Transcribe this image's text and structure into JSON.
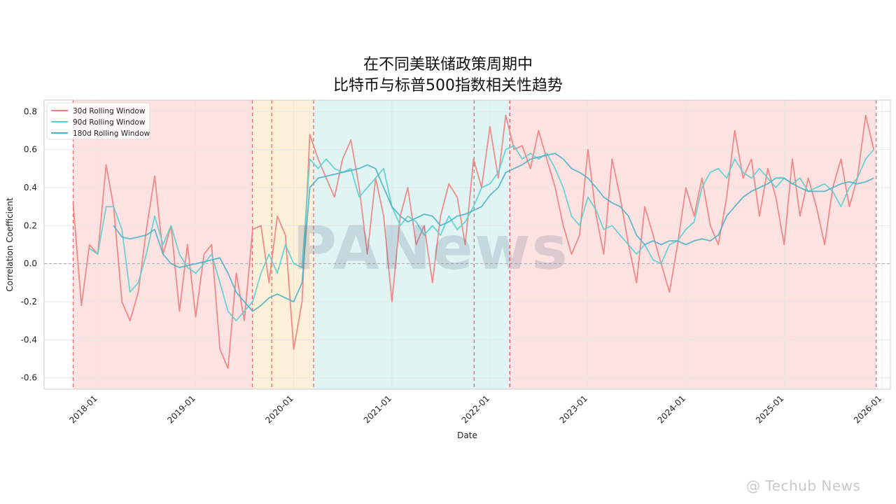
{
  "title_line1": "在不同美联储政策周期中",
  "title_line2": "比特币与标普500指数相关性趋势",
  "watermark": "@ Techub News",
  "logo_watermark": "PANews",
  "chart_data": {
    "type": "line",
    "title": "在不同美联储政策周期中 比特币与标普500指数相关性趋势",
    "xlabel": "Date",
    "ylabel": "Correlation Coefficient",
    "xlim": [
      "2017-06-15",
      "2026-02-01"
    ],
    "ylim": [
      -0.66,
      0.86
    ],
    "yticks": [
      -0.6,
      -0.4,
      -0.2,
      0.0,
      0.2,
      0.4,
      0.6,
      0.8
    ],
    "ytick_labels": [
      "-0.6",
      "-0.4",
      "-0.2",
      "0.0",
      "0.2",
      "0.4",
      "0.6",
      "0.8"
    ],
    "xticks": [
      "2018-01-01",
      "2019-01-01",
      "2020-01-01",
      "2021-01-01",
      "2022-01-01",
      "2023-01-01",
      "2024-01-01",
      "2025-01-01",
      "2026-01-01"
    ],
    "xtick_labels": [
      "2018-01",
      "2019-01",
      "2020-01",
      "2021-01",
      "2022-01",
      "2023-01",
      "2024-01",
      "2025-01",
      "2026-01"
    ],
    "grid": true,
    "legend": "top-left",
    "zero_line": 0.0,
    "regimes": [
      {
        "start": "2017-10-01",
        "end": "2019-07-31",
        "color": "#fde2e2"
      },
      {
        "start": "2019-07-31",
        "end": "2020-03-15",
        "color": "#fdf0d9"
      },
      {
        "start": "2020-03-15",
        "end": "2022-03-16",
        "color": "#e0f4f4"
      },
      {
        "start": "2022-03-16",
        "end": "2025-12-10",
        "color": "#fde2e2"
      }
    ],
    "vlines": [
      "2017-10-01",
      "2019-07-31",
      "2019-10-11",
      "2020-03-15",
      "2021-11-03",
      "2022-03-16",
      "2022-03-16",
      "2025-12-10"
    ],
    "series": [
      {
        "name": "30d Rolling Window",
        "color": "#f08080",
        "x": [
          "2017-10-01",
          "2017-11-01",
          "2017-12-01",
          "2018-01-01",
          "2018-02-01",
          "2018-03-01",
          "2018-04-01",
          "2018-05-01",
          "2018-06-01",
          "2018-07-01",
          "2018-08-01",
          "2018-09-01",
          "2018-10-01",
          "2018-11-01",
          "2018-12-01",
          "2019-01-01",
          "2019-02-01",
          "2019-03-01",
          "2019-04-01",
          "2019-05-01",
          "2019-06-01",
          "2019-07-01",
          "2019-08-01",
          "2019-09-01",
          "2019-10-01",
          "2019-11-01",
          "2019-12-01",
          "2020-01-01",
          "2020-02-01",
          "2020-03-01",
          "2020-04-01",
          "2020-05-01",
          "2020-06-01",
          "2020-07-01",
          "2020-08-01",
          "2020-09-01",
          "2020-10-01",
          "2020-11-01",
          "2020-12-01",
          "2021-01-01",
          "2021-02-01",
          "2021-03-01",
          "2021-04-01",
          "2021-05-01",
          "2021-06-01",
          "2021-07-01",
          "2021-08-01",
          "2021-09-01",
          "2021-10-01",
          "2021-11-01",
          "2021-12-01",
          "2022-01-01",
          "2022-02-01",
          "2022-03-01",
          "2022-04-01",
          "2022-05-01",
          "2022-06-01",
          "2022-07-01",
          "2022-08-01",
          "2022-09-01",
          "2022-10-01",
          "2022-11-01",
          "2022-12-01",
          "2023-01-01",
          "2023-02-01",
          "2023-03-01",
          "2023-04-01",
          "2023-05-01",
          "2023-06-01",
          "2023-07-01",
          "2023-08-01",
          "2023-09-01",
          "2023-10-01",
          "2023-11-01",
          "2023-12-01",
          "2024-01-01",
          "2024-02-01",
          "2024-03-01",
          "2024-04-01",
          "2024-05-01",
          "2024-06-01",
          "2024-07-01",
          "2024-08-01",
          "2024-09-01",
          "2024-10-01",
          "2024-11-01",
          "2024-12-01",
          "2025-01-01",
          "2025-02-01",
          "2025-03-01",
          "2025-04-01",
          "2025-05-01",
          "2025-06-01",
          "2025-07-01",
          "2025-08-01",
          "2025-09-01",
          "2025-10-01",
          "2025-11-01",
          "2025-12-01"
        ],
        "y": [
          0.32,
          -0.22,
          0.1,
          0.05,
          0.52,
          0.3,
          -0.2,
          -0.3,
          -0.15,
          0.18,
          0.46,
          0.05,
          0.2,
          -0.25,
          0.1,
          -0.28,
          0.05,
          0.1,
          -0.45,
          -0.55,
          -0.05,
          -0.3,
          0.18,
          0.2,
          -0.1,
          0.25,
          0.15,
          -0.45,
          -0.2,
          0.68,
          0.55,
          0.45,
          0.35,
          0.55,
          0.65,
          0.4,
          0.05,
          0.45,
          0.25,
          -0.2,
          0.25,
          0.4,
          0.1,
          0.2,
          -0.1,
          0.25,
          0.42,
          0.35,
          0.1,
          0.55,
          0.4,
          0.72,
          0.45,
          0.78,
          0.6,
          0.62,
          0.5,
          0.7,
          0.55,
          0.4,
          0.2,
          0.05,
          0.15,
          0.6,
          0.25,
          0.05,
          0.55,
          0.35,
          0.1,
          -0.1,
          0.3,
          0.15,
          0.0,
          -0.15,
          0.1,
          0.4,
          0.25,
          0.45,
          0.2,
          0.1,
          0.35,
          0.7,
          0.45,
          0.55,
          0.25,
          0.5,
          0.35,
          0.1,
          0.55,
          0.25,
          0.45,
          0.3,
          0.1,
          0.4,
          0.55,
          0.3,
          0.45,
          0.78,
          0.6
        ]
      },
      {
        "name": "90d Rolling Window",
        "color": "#5ccfcf",
        "x": [
          "2017-12-01",
          "2018-01-01",
          "2018-02-01",
          "2018-03-01",
          "2018-04-01",
          "2018-05-01",
          "2018-06-01",
          "2018-07-01",
          "2018-08-01",
          "2018-09-01",
          "2018-10-01",
          "2018-11-01",
          "2018-12-01",
          "2019-01-01",
          "2019-02-01",
          "2019-03-01",
          "2019-04-01",
          "2019-05-01",
          "2019-06-01",
          "2019-07-01",
          "2019-08-01",
          "2019-09-01",
          "2019-10-01",
          "2019-11-01",
          "2019-12-01",
          "2020-01-01",
          "2020-02-01",
          "2020-03-01",
          "2020-04-01",
          "2020-05-01",
          "2020-06-01",
          "2020-07-01",
          "2020-08-01",
          "2020-09-01",
          "2020-10-01",
          "2020-11-01",
          "2020-12-01",
          "2021-01-01",
          "2021-02-01",
          "2021-03-01",
          "2021-04-01",
          "2021-05-01",
          "2021-06-01",
          "2021-07-01",
          "2021-08-01",
          "2021-09-01",
          "2021-10-01",
          "2021-11-01",
          "2021-12-01",
          "2022-01-01",
          "2022-02-01",
          "2022-03-01",
          "2022-04-01",
          "2022-05-01",
          "2022-06-01",
          "2022-07-01",
          "2022-08-01",
          "2022-09-01",
          "2022-10-01",
          "2022-11-01",
          "2022-12-01",
          "2023-01-01",
          "2023-02-01",
          "2023-03-01",
          "2023-04-01",
          "2023-05-01",
          "2023-06-01",
          "2023-07-01",
          "2023-08-01",
          "2023-09-01",
          "2023-10-01",
          "2023-11-01",
          "2023-12-01",
          "2024-01-01",
          "2024-02-01",
          "2024-03-01",
          "2024-04-01",
          "2024-05-01",
          "2024-06-01",
          "2024-07-01",
          "2024-08-01",
          "2024-09-01",
          "2024-10-01",
          "2024-11-01",
          "2024-12-01",
          "2025-01-01",
          "2025-02-01",
          "2025-03-01",
          "2025-04-01",
          "2025-05-01",
          "2025-06-01",
          "2025-07-01",
          "2025-08-01",
          "2025-09-01",
          "2025-10-01",
          "2025-11-01",
          "2025-12-01"
        ],
        "y": [
          0.08,
          0.05,
          0.3,
          0.3,
          0.18,
          -0.15,
          -0.1,
          0.05,
          0.25,
          0.1,
          0.2,
          0.05,
          -0.02,
          -0.05,
          0.0,
          0.05,
          -0.1,
          -0.25,
          -0.3,
          -0.25,
          -0.2,
          -0.05,
          0.05,
          -0.05,
          0.1,
          0.0,
          -0.02,
          0.55,
          0.5,
          0.55,
          0.5,
          0.48,
          0.5,
          0.35,
          0.4,
          0.45,
          0.5,
          0.3,
          0.2,
          0.25,
          0.22,
          0.15,
          0.2,
          0.15,
          0.25,
          0.18,
          0.22,
          0.3,
          0.4,
          0.42,
          0.48,
          0.6,
          0.62,
          0.55,
          0.58,
          0.55,
          0.58,
          0.5,
          0.4,
          0.25,
          0.2,
          0.35,
          0.28,
          0.18,
          0.2,
          0.15,
          0.1,
          0.05,
          0.1,
          0.02,
          0.0,
          0.1,
          0.12,
          0.18,
          0.22,
          0.4,
          0.48,
          0.5,
          0.45,
          0.55,
          0.48,
          0.45,
          0.5,
          0.45,
          0.4,
          0.45,
          0.42,
          0.45,
          0.38,
          0.4,
          0.42,
          0.38,
          0.3,
          0.4,
          0.45,
          0.55,
          0.6
        ]
      },
      {
        "name": "180d Rolling Window",
        "color": "#4fb3c8",
        "x": [
          "2018-03-01",
          "2018-04-01",
          "2018-05-01",
          "2018-06-01",
          "2018-07-01",
          "2018-08-01",
          "2018-09-01",
          "2018-10-01",
          "2018-11-01",
          "2018-12-01",
          "2019-01-01",
          "2019-02-01",
          "2019-03-01",
          "2019-04-01",
          "2019-05-01",
          "2019-06-01",
          "2019-07-01",
          "2019-08-01",
          "2019-09-01",
          "2019-10-01",
          "2019-11-01",
          "2019-12-01",
          "2020-01-01",
          "2020-02-01",
          "2020-03-01",
          "2020-04-01",
          "2020-05-01",
          "2020-06-01",
          "2020-07-01",
          "2020-08-01",
          "2020-09-01",
          "2020-10-01",
          "2020-11-01",
          "2020-12-01",
          "2021-01-01",
          "2021-02-01",
          "2021-03-01",
          "2021-04-01",
          "2021-05-01",
          "2021-06-01",
          "2021-07-01",
          "2021-08-01",
          "2021-09-01",
          "2021-10-01",
          "2021-11-01",
          "2021-12-01",
          "2022-01-01",
          "2022-02-01",
          "2022-03-01",
          "2022-04-01",
          "2022-05-01",
          "2022-06-01",
          "2022-07-01",
          "2022-08-01",
          "2022-09-01",
          "2022-10-01",
          "2022-11-01",
          "2022-12-01",
          "2023-01-01",
          "2023-02-01",
          "2023-03-01",
          "2023-04-01",
          "2023-05-01",
          "2023-06-01",
          "2023-07-01",
          "2023-08-01",
          "2023-09-01",
          "2023-10-01",
          "2023-11-01",
          "2023-12-01",
          "2024-01-01",
          "2024-02-01",
          "2024-03-01",
          "2024-04-01",
          "2024-05-01",
          "2024-06-01",
          "2024-07-01",
          "2024-08-01",
          "2024-09-01",
          "2024-10-01",
          "2024-11-01",
          "2024-12-01",
          "2025-01-01",
          "2025-02-01",
          "2025-03-01",
          "2025-04-01",
          "2025-05-01",
          "2025-06-01",
          "2025-07-01",
          "2025-08-01",
          "2025-09-01",
          "2025-10-01",
          "2025-11-01",
          "2025-12-01"
        ],
        "y": [
          0.2,
          0.14,
          0.13,
          0.14,
          0.15,
          0.18,
          0.05,
          0.0,
          -0.02,
          -0.01,
          0.0,
          0.01,
          0.02,
          0.03,
          -0.05,
          -0.15,
          -0.2,
          -0.25,
          -0.22,
          -0.18,
          -0.16,
          -0.18,
          -0.2,
          -0.1,
          0.4,
          0.45,
          0.46,
          0.47,
          0.48,
          0.49,
          0.5,
          0.52,
          0.5,
          0.4,
          0.3,
          0.25,
          0.22,
          0.24,
          0.26,
          0.25,
          0.2,
          0.22,
          0.25,
          0.26,
          0.28,
          0.3,
          0.36,
          0.4,
          0.48,
          0.5,
          0.52,
          0.55,
          0.56,
          0.57,
          0.58,
          0.55,
          0.5,
          0.48,
          0.45,
          0.4,
          0.35,
          0.32,
          0.3,
          0.25,
          0.15,
          0.1,
          0.12,
          0.1,
          0.12,
          0.12,
          0.1,
          0.12,
          0.13,
          0.12,
          0.15,
          0.25,
          0.3,
          0.35,
          0.38,
          0.4,
          0.42,
          0.45,
          0.45,
          0.42,
          0.4,
          0.38,
          0.38,
          0.38,
          0.4,
          0.42,
          0.43,
          0.42,
          0.43,
          0.45
        ]
      }
    ]
  }
}
